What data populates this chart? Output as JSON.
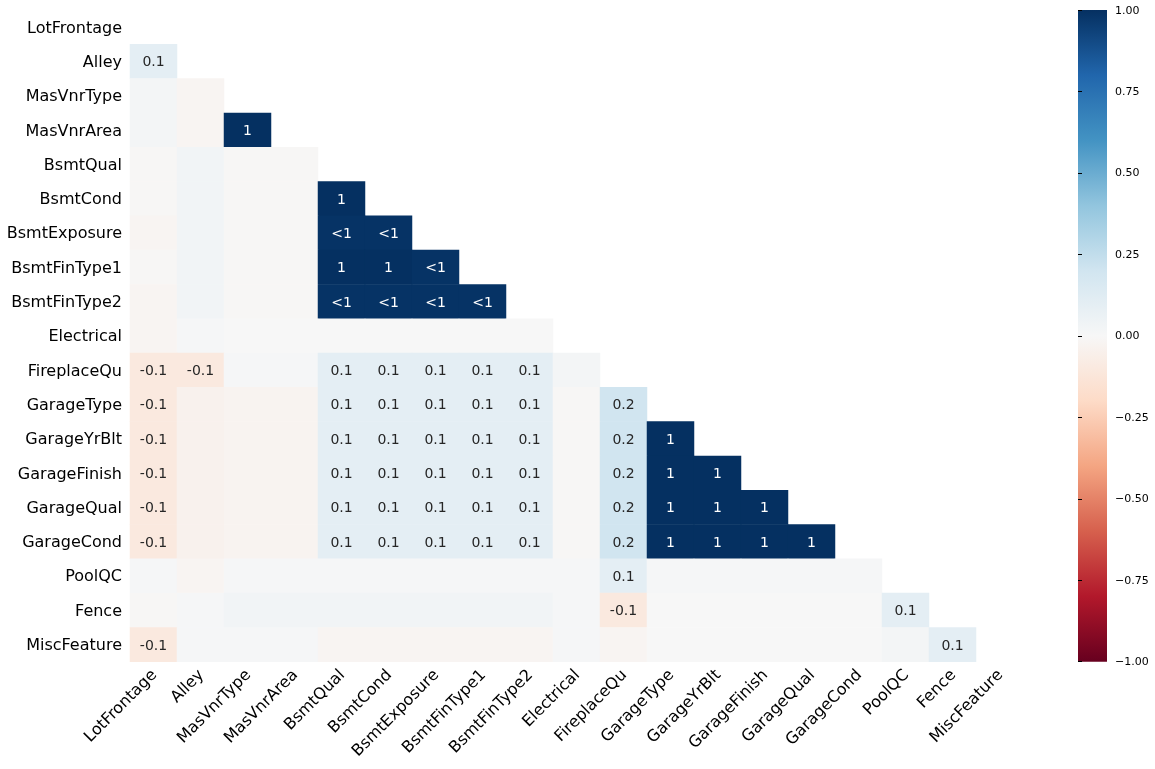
{
  "chart_data": {
    "type": "heatmap",
    "categories": [
      "LotFrontage",
      "Alley",
      "MasVnrType",
      "MasVnrArea",
      "BsmtQual",
      "BsmtCond",
      "BsmtExposure",
      "BsmtFinType1",
      "BsmtFinType2",
      "Electrical",
      "FireplaceQu",
      "GarageType",
      "GarageYrBlt",
      "GarageFinish",
      "GarageQual",
      "GarageCond",
      "PoolQC",
      "Fence",
      "MiscFeature"
    ],
    "y_categories": [
      "LotFrontage",
      "Alley",
      "MasVnrType",
      "MasVnrArea",
      "BsmtQual",
      "BsmtCond",
      "BsmtExposure",
      "BsmtFinType1",
      "BsmtFinType2",
      "Electrical",
      "FireplaceQu",
      "GarageType",
      "GarageYrBlt",
      "GarageFinish",
      "GarageQual",
      "GarageCond",
      "PoolQC",
      "Fence",
      "MiscFeature"
    ],
    "cells": [
      [
        null,
        null,
        null,
        null,
        null,
        null,
        null,
        null,
        null,
        null,
        null,
        null,
        null,
        null,
        null,
        null,
        null,
        null,
        null
      ],
      [
        0.1,
        null,
        null,
        null,
        null,
        null,
        null,
        null,
        null,
        null,
        null,
        null,
        null,
        null,
        null,
        null,
        null,
        null,
        null
      ],
      [
        0.02,
        -0.02,
        null,
        null,
        null,
        null,
        null,
        null,
        null,
        null,
        null,
        null,
        null,
        null,
        null,
        null,
        null,
        null,
        null
      ],
      [
        0.02,
        -0.02,
        1,
        null,
        null,
        null,
        null,
        null,
        null,
        null,
        null,
        null,
        null,
        null,
        null,
        null,
        null,
        null,
        null
      ],
      [
        -0.01,
        0.03,
        -0.01,
        -0.01,
        null,
        null,
        null,
        null,
        null,
        null,
        null,
        null,
        null,
        null,
        null,
        null,
        null,
        null,
        null
      ],
      [
        -0.01,
        0.03,
        -0.01,
        -0.01,
        1,
        null,
        null,
        null,
        null,
        null,
        null,
        null,
        null,
        null,
        null,
        null,
        null,
        null,
        null
      ],
      [
        -0.02,
        0.03,
        -0.01,
        -0.01,
        0.99,
        0.99,
        null,
        null,
        null,
        null,
        null,
        null,
        null,
        null,
        null,
        null,
        null,
        null,
        null
      ],
      [
        -0.01,
        0.03,
        -0.01,
        -0.01,
        1,
        1,
        0.99,
        null,
        null,
        null,
        null,
        null,
        null,
        null,
        null,
        null,
        null,
        null,
        null
      ],
      [
        -0.02,
        0.03,
        -0.01,
        -0.01,
        0.99,
        0.99,
        0.99,
        0.99,
        null,
        null,
        null,
        null,
        null,
        null,
        null,
        null,
        null,
        null,
        null
      ],
      [
        -0.02,
        0.01,
        0,
        0,
        0,
        0,
        0,
        0,
        0,
        null,
        null,
        null,
        null,
        null,
        null,
        null,
        null,
        null,
        null
      ],
      [
        -0.1,
        -0.1,
        0.01,
        0.01,
        0.1,
        0.1,
        0.1,
        0.1,
        0.1,
        0.02,
        null,
        null,
        null,
        null,
        null,
        null,
        null,
        null,
        null
      ],
      [
        -0.1,
        -0.04,
        -0.03,
        -0.03,
        0.1,
        0.1,
        0.1,
        0.1,
        0.1,
        -0.01,
        0.2,
        null,
        null,
        null,
        null,
        null,
        null,
        null,
        null
      ],
      [
        -0.1,
        -0.04,
        -0.03,
        -0.03,
        0.1,
        0.1,
        0.1,
        0.1,
        0.1,
        -0.01,
        0.2,
        1,
        null,
        null,
        null,
        null,
        null,
        null,
        null
      ],
      [
        -0.1,
        -0.04,
        -0.03,
        -0.03,
        0.1,
        0.1,
        0.1,
        0.1,
        0.1,
        -0.01,
        0.2,
        1,
        1,
        null,
        null,
        null,
        null,
        null,
        null
      ],
      [
        -0.1,
        -0.04,
        -0.03,
        -0.03,
        0.1,
        0.1,
        0.1,
        0.1,
        0.1,
        -0.01,
        0.2,
        1,
        1,
        1,
        null,
        null,
        null,
        null,
        null
      ],
      [
        -0.1,
        -0.04,
        -0.03,
        -0.03,
        0.1,
        0.1,
        0.1,
        0.1,
        0.1,
        -0.01,
        0.2,
        1,
        1,
        1,
        1,
        null,
        null,
        null,
        null
      ],
      [
        0.01,
        -0.02,
        0.01,
        0.01,
        0.01,
        0.01,
        0.01,
        0.01,
        0.01,
        0.01,
        0.1,
        0.01,
        0.01,
        0.01,
        0.01,
        0.01,
        null,
        null,
        null
      ],
      [
        -0.01,
        0.01,
        0.03,
        0.03,
        0.03,
        0.03,
        0.03,
        0.03,
        0.03,
        0.01,
        -0.1,
        0,
        0,
        0,
        0,
        0,
        0.1,
        null,
        null
      ],
      [
        -0.1,
        0.01,
        0.01,
        0.01,
        -0.02,
        -0.02,
        -0.02,
        -0.02,
        -0.02,
        0.01,
        -0.02,
        0,
        0,
        0,
        0,
        0,
        0.02,
        0.1,
        null
      ]
    ],
    "cell_labels": [
      [
        null,
        null,
        null,
        null,
        null,
        null,
        null,
        null,
        null,
        null,
        null,
        null,
        null,
        null,
        null,
        null,
        null,
        null,
        null
      ],
      [
        "0.1",
        null,
        null,
        null,
        null,
        null,
        null,
        null,
        null,
        null,
        null,
        null,
        null,
        null,
        null,
        null,
        null,
        null,
        null
      ],
      [
        null,
        null,
        null,
        null,
        null,
        null,
        null,
        null,
        null,
        null,
        null,
        null,
        null,
        null,
        null,
        null,
        null,
        null,
        null
      ],
      [
        null,
        null,
        "1",
        null,
        null,
        null,
        null,
        null,
        null,
        null,
        null,
        null,
        null,
        null,
        null,
        null,
        null,
        null,
        null
      ],
      [
        null,
        null,
        null,
        null,
        null,
        null,
        null,
        null,
        null,
        null,
        null,
        null,
        null,
        null,
        null,
        null,
        null,
        null,
        null
      ],
      [
        null,
        null,
        null,
        null,
        "1",
        null,
        null,
        null,
        null,
        null,
        null,
        null,
        null,
        null,
        null,
        null,
        null,
        null,
        null
      ],
      [
        null,
        null,
        null,
        null,
        "<1",
        "<1",
        null,
        null,
        null,
        null,
        null,
        null,
        null,
        null,
        null,
        null,
        null,
        null,
        null
      ],
      [
        null,
        null,
        null,
        null,
        "1",
        "1",
        "<1",
        null,
        null,
        null,
        null,
        null,
        null,
        null,
        null,
        null,
        null,
        null,
        null
      ],
      [
        null,
        null,
        null,
        null,
        "<1",
        "<1",
        "<1",
        "<1",
        null,
        null,
        null,
        null,
        null,
        null,
        null,
        null,
        null,
        null,
        null
      ],
      [
        null,
        null,
        null,
        null,
        null,
        null,
        null,
        null,
        null,
        null,
        null,
        null,
        null,
        null,
        null,
        null,
        null,
        null,
        null
      ],
      [
        "-0.1",
        "-0.1",
        null,
        null,
        "0.1",
        "0.1",
        "0.1",
        "0.1",
        "0.1",
        null,
        null,
        null,
        null,
        null,
        null,
        null,
        null,
        null,
        null
      ],
      [
        "-0.1",
        null,
        null,
        null,
        "0.1",
        "0.1",
        "0.1",
        "0.1",
        "0.1",
        null,
        "0.2",
        null,
        null,
        null,
        null,
        null,
        null,
        null,
        null
      ],
      [
        "-0.1",
        null,
        null,
        null,
        "0.1",
        "0.1",
        "0.1",
        "0.1",
        "0.1",
        null,
        "0.2",
        "1",
        null,
        null,
        null,
        null,
        null,
        null,
        null
      ],
      [
        "-0.1",
        null,
        null,
        null,
        "0.1",
        "0.1",
        "0.1",
        "0.1",
        "0.1",
        null,
        "0.2",
        "1",
        "1",
        null,
        null,
        null,
        null,
        null,
        null
      ],
      [
        "-0.1",
        null,
        null,
        null,
        "0.1",
        "0.1",
        "0.1",
        "0.1",
        "0.1",
        null,
        "0.2",
        "1",
        "1",
        "1",
        null,
        null,
        null,
        null,
        null
      ],
      [
        "-0.1",
        null,
        null,
        null,
        "0.1",
        "0.1",
        "0.1",
        "0.1",
        "0.1",
        null,
        "0.2",
        "1",
        "1",
        "1",
        "1",
        null,
        null,
        null,
        null
      ],
      [
        null,
        null,
        null,
        null,
        null,
        null,
        null,
        null,
        null,
        null,
        "0.1",
        null,
        null,
        null,
        null,
        null,
        null,
        null,
        null
      ],
      [
        null,
        null,
        null,
        null,
        null,
        null,
        null,
        null,
        null,
        null,
        "-0.1",
        null,
        null,
        null,
        null,
        null,
        "0.1",
        null,
        null
      ],
      [
        "-0.1",
        null,
        null,
        null,
        null,
        null,
        null,
        null,
        null,
        null,
        null,
        null,
        null,
        null,
        null,
        null,
        null,
        "0.1",
        null
      ]
    ],
    "clim": [
      -1,
      1
    ],
    "cticks": [
      {
        "value": -1,
        "label": "−1.00"
      },
      {
        "value": -0.75,
        "label": "−0.75"
      },
      {
        "value": -0.5,
        "label": "−0.50"
      },
      {
        "value": -0.25,
        "label": "−0.25"
      },
      {
        "value": 0,
        "label": "0.00"
      },
      {
        "value": 0.25,
        "label": "0.25"
      },
      {
        "value": 0.5,
        "label": "0.50"
      },
      {
        "value": 0.75,
        "label": "0.75"
      },
      {
        "value": 1,
        "label": "1.00"
      }
    ]
  }
}
